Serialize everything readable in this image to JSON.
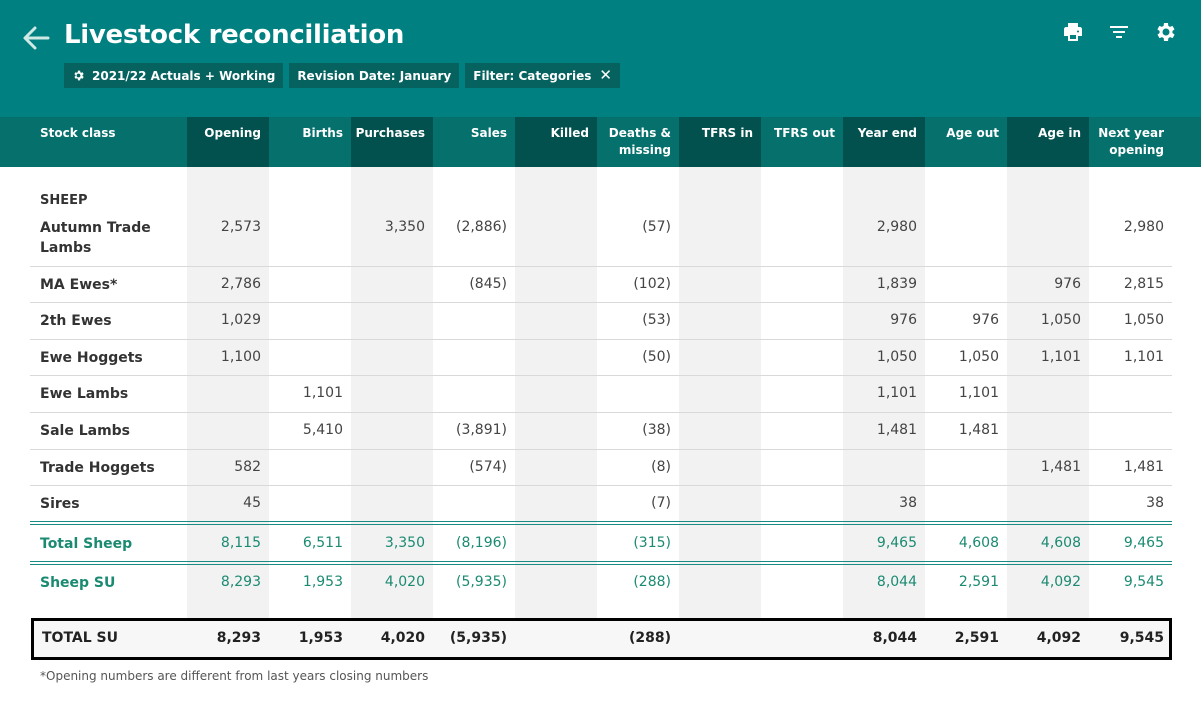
{
  "header": {
    "title": "Livestock reconciliation",
    "chips": {
      "scenario": "2021/22 Actuals + Working",
      "revision": "Revision Date: January",
      "filter": "Filter: Categories",
      "close": "✕"
    }
  },
  "columns": {
    "stock_class": "Stock class",
    "opening": "Opening",
    "births": "Births",
    "purchases": "Purchases",
    "sales": "Sales",
    "killed": "Killed",
    "deaths_1": "Deaths &",
    "deaths_2": "missing",
    "tfrs_in": "TFRS in",
    "tfrs_out": "TFRS out",
    "year_end": "Year end",
    "age_out": "Age out",
    "age_in": "Age in",
    "next_1": "Next year",
    "next_2": "opening"
  },
  "section": "SHEEP",
  "rows": {
    "autumn": {
      "label_1": "Autumn Trade",
      "label_2": "Lambs",
      "opening": "2,573",
      "births": "",
      "purchases": "3,350",
      "sales": "(2,886)",
      "killed": "",
      "deaths": "(57)",
      "tfrs_in": "",
      "tfrs_out": "",
      "year_end": "2,980",
      "age_out": "",
      "age_in": "",
      "next": "2,980"
    },
    "ma_ewes": {
      "label": "MA Ewes*",
      "opening": "2,786",
      "births": "",
      "purchases": "",
      "sales": "(845)",
      "killed": "",
      "deaths": "(102)",
      "tfrs_in": "",
      "tfrs_out": "",
      "year_end": "1,839",
      "age_out": "",
      "age_in": "976",
      "next": "2,815"
    },
    "two_th": {
      "label": "2th Ewes",
      "opening": "1,029",
      "births": "",
      "purchases": "",
      "sales": "",
      "killed": "",
      "deaths": "(53)",
      "tfrs_in": "",
      "tfrs_out": "",
      "year_end": "976",
      "age_out": "976",
      "age_in": "1,050",
      "next": "1,050"
    },
    "ewe_hoggets": {
      "label": "Ewe Hoggets",
      "opening": "1,100",
      "births": "",
      "purchases": "",
      "sales": "",
      "killed": "",
      "deaths": "(50)",
      "tfrs_in": "",
      "tfrs_out": "",
      "year_end": "1,050",
      "age_out": "1,050",
      "age_in": "1,101",
      "next": "1,101"
    },
    "ewe_lambs": {
      "label": "Ewe Lambs",
      "opening": "",
      "births": "1,101",
      "purchases": "",
      "sales": "",
      "killed": "",
      "deaths": "",
      "tfrs_in": "",
      "tfrs_out": "",
      "year_end": "1,101",
      "age_out": "1,101",
      "age_in": "",
      "next": ""
    },
    "sale_lambs": {
      "label": "Sale Lambs",
      "opening": "",
      "births": "5,410",
      "purchases": "",
      "sales": "(3,891)",
      "killed": "",
      "deaths": "(38)",
      "tfrs_in": "",
      "tfrs_out": "",
      "year_end": "1,481",
      "age_out": "1,481",
      "age_in": "",
      "next": ""
    },
    "trade_hoggets": {
      "label": "Trade Hoggets",
      "opening": "582",
      "births": "",
      "purchases": "",
      "sales": "(574)",
      "killed": "",
      "deaths": "(8)",
      "tfrs_in": "",
      "tfrs_out": "",
      "year_end": "",
      "age_out": "",
      "age_in": "1,481",
      "next": "1,481"
    },
    "sires": {
      "label": "Sires",
      "opening": "45",
      "births": "",
      "purchases": "",
      "sales": "",
      "killed": "",
      "deaths": "(7)",
      "tfrs_in": "",
      "tfrs_out": "",
      "year_end": "38",
      "age_out": "",
      "age_in": "",
      "next": "38"
    },
    "total_sheep": {
      "label": "Total Sheep",
      "opening": "8,115",
      "births": "6,511",
      "purchases": "3,350",
      "sales": "(8,196)",
      "killed": "",
      "deaths": "(315)",
      "tfrs_in": "",
      "tfrs_out": "",
      "year_end": "9,465",
      "age_out": "4,608",
      "age_in": "4,608",
      "next": "9,465"
    },
    "sheep_su": {
      "label": "Sheep SU",
      "opening": "8,293",
      "births": "1,953",
      "purchases": "4,020",
      "sales": "(5,935)",
      "killed": "",
      "deaths": "(288)",
      "tfrs_in": "",
      "tfrs_out": "",
      "year_end": "8,044",
      "age_out": "2,591",
      "age_in": "4,092",
      "next": "9,545"
    },
    "total_su": {
      "label": "TOTAL SU",
      "opening": "8,293",
      "births": "1,953",
      "purchases": "4,020",
      "sales": "(5,935)",
      "killed": "",
      "deaths": "(288)",
      "tfrs_in": "",
      "tfrs_out": "",
      "year_end": "8,044",
      "age_out": "2,591",
      "age_in": "4,092",
      "next": "9,545"
    }
  },
  "footnote": "*Opening numbers are different from last years closing numbers",
  "colors": {
    "header": "#008080",
    "column_header": "#05706c",
    "accent_text": "#1b8a72"
  }
}
